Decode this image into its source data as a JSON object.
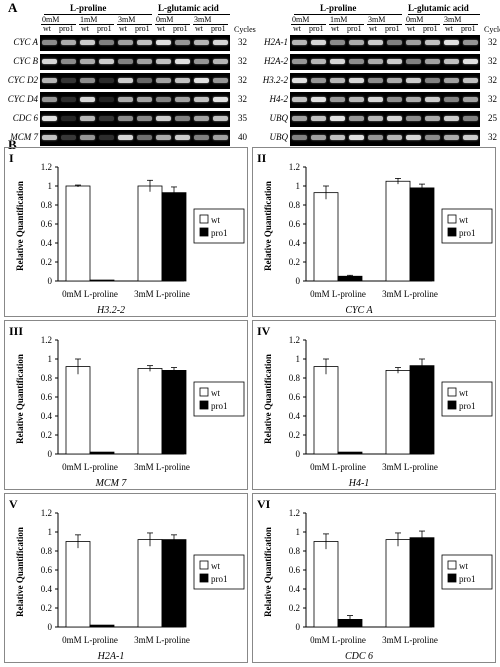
{
  "panel_a": {
    "letter": "A",
    "header": {
      "treatment1": "L-proline",
      "treatment2": "L-glutamic acid",
      "conc_proline": [
        "0mM",
        "1mM",
        "3mM"
      ],
      "conc_glutamic": [
        "0mM",
        "3mM"
      ],
      "genotypes": [
        "wt",
        "pro1"
      ],
      "cycles_label": "Cycles"
    },
    "left_genes": [
      {
        "name": "CYC A",
        "cycles": "32"
      },
      {
        "name": "CYC B",
        "cycles": "32"
      },
      {
        "name": "CYC D2",
        "cycles": "32"
      },
      {
        "name": "CYC D4",
        "cycles": "32"
      },
      {
        "name": "CDC 6",
        "cycles": "35"
      },
      {
        "name": "MCM 7",
        "cycles": "40"
      }
    ],
    "right_genes": [
      {
        "name": "H2A-1",
        "cycles": "32"
      },
      {
        "name": "H2A-2",
        "cycles": "32"
      },
      {
        "name": "H3.2-2",
        "cycles": "32"
      },
      {
        "name": "H4-2",
        "cycles": "32"
      },
      {
        "name": "UBQ",
        "cycles": "25"
      },
      {
        "name": "UBQ",
        "cycles": "32"
      }
    ]
  },
  "panel_b": {
    "letter": "B"
  },
  "chart_data": [
    {
      "type": "bar",
      "numeral": "I",
      "gene": "H3.2-2",
      "ylabel": "Relative Quantification",
      "ylim": [
        0,
        1.2
      ],
      "yticks": [
        "0",
        "0.2",
        "0.4",
        "0.6",
        "0.8",
        "1",
        "1.2"
      ],
      "categories": [
        "0mM L-proline",
        "3mM L-proline"
      ],
      "series": [
        {
          "name": "wt",
          "values": [
            1.0,
            1.0
          ],
          "errors": [
            0.01,
            0.06
          ]
        },
        {
          "name": "pro1",
          "values": [
            0.01,
            0.93
          ],
          "errors": [
            0,
            0.06
          ]
        }
      ]
    },
    {
      "type": "bar",
      "numeral": "II",
      "gene": "CYC A",
      "ylabel": "Relative Quantification",
      "ylim": [
        0,
        1.2
      ],
      "yticks": [
        "0",
        "0.2",
        "0.4",
        "0.6",
        "0.8",
        "1",
        "1.2"
      ],
      "categories": [
        "0mM L-proline",
        "3mM L-proline"
      ],
      "series": [
        {
          "name": "wt",
          "values": [
            0.93,
            1.05
          ],
          "errors": [
            0.07,
            0.03
          ]
        },
        {
          "name": "pro1",
          "values": [
            0.05,
            0.98
          ],
          "errors": [
            0.01,
            0.04
          ]
        }
      ]
    },
    {
      "type": "bar",
      "numeral": "III",
      "gene": "MCM 7",
      "ylabel": "Relative Quantification",
      "ylim": [
        0,
        1.2
      ],
      "yticks": [
        "0",
        "0.2",
        "0.4",
        "0.6",
        "0.8",
        "1",
        "1.2"
      ],
      "categories": [
        "0mM L-proline",
        "3mM L-proline"
      ],
      "series": [
        {
          "name": "wt",
          "values": [
            0.92,
            0.9
          ],
          "errors": [
            0.08,
            0.03
          ]
        },
        {
          "name": "pro1",
          "values": [
            0.02,
            0.88
          ],
          "errors": [
            0,
            0.03
          ]
        }
      ]
    },
    {
      "type": "bar",
      "numeral": "IV",
      "gene": "H4-1",
      "ylabel": "Relative Quantification",
      "ylim": [
        0,
        1.2
      ],
      "yticks": [
        "0",
        "0.2",
        "0.4",
        "0.6",
        "0.8",
        "1",
        "1.2"
      ],
      "categories": [
        "0mM L-proline",
        "3mM L-proline"
      ],
      "series": [
        {
          "name": "wt",
          "values": [
            0.92,
            0.88
          ],
          "errors": [
            0.08,
            0.03
          ]
        },
        {
          "name": "pro1",
          "values": [
            0.02,
            0.93
          ],
          "errors": [
            0,
            0.07
          ]
        }
      ]
    },
    {
      "type": "bar",
      "numeral": "V",
      "gene": "H2A-1",
      "ylabel": "Relative Quantification",
      "ylim": [
        0,
        1.2
      ],
      "yticks": [
        "0",
        "0.2",
        "0.4",
        "0.6",
        "0.8",
        "1",
        "1.2"
      ],
      "categories": [
        "0mM L-proline",
        "3mM L-proline"
      ],
      "series": [
        {
          "name": "wt",
          "values": [
            0.9,
            0.92
          ],
          "errors": [
            0.07,
            0.07
          ]
        },
        {
          "name": "pro1",
          "values": [
            0.02,
            0.92
          ],
          "errors": [
            0,
            0.05
          ]
        }
      ]
    },
    {
      "type": "bar",
      "numeral": "VI",
      "gene": "CDC 6",
      "ylabel": "Relative Quantification",
      "ylim": [
        0,
        1.2
      ],
      "yticks": [
        "0",
        "0.2",
        "0.4",
        "0.6",
        "0.8",
        "1",
        "1.2"
      ],
      "categories": [
        "0mM L-proline",
        "3mM L-proline"
      ],
      "series": [
        {
          "name": "wt",
          "values": [
            0.9,
            0.92
          ],
          "errors": [
            0.08,
            0.07
          ]
        },
        {
          "name": "pro1",
          "values": [
            0.08,
            0.94
          ],
          "errors": [
            0.04,
            0.07
          ]
        }
      ]
    }
  ]
}
